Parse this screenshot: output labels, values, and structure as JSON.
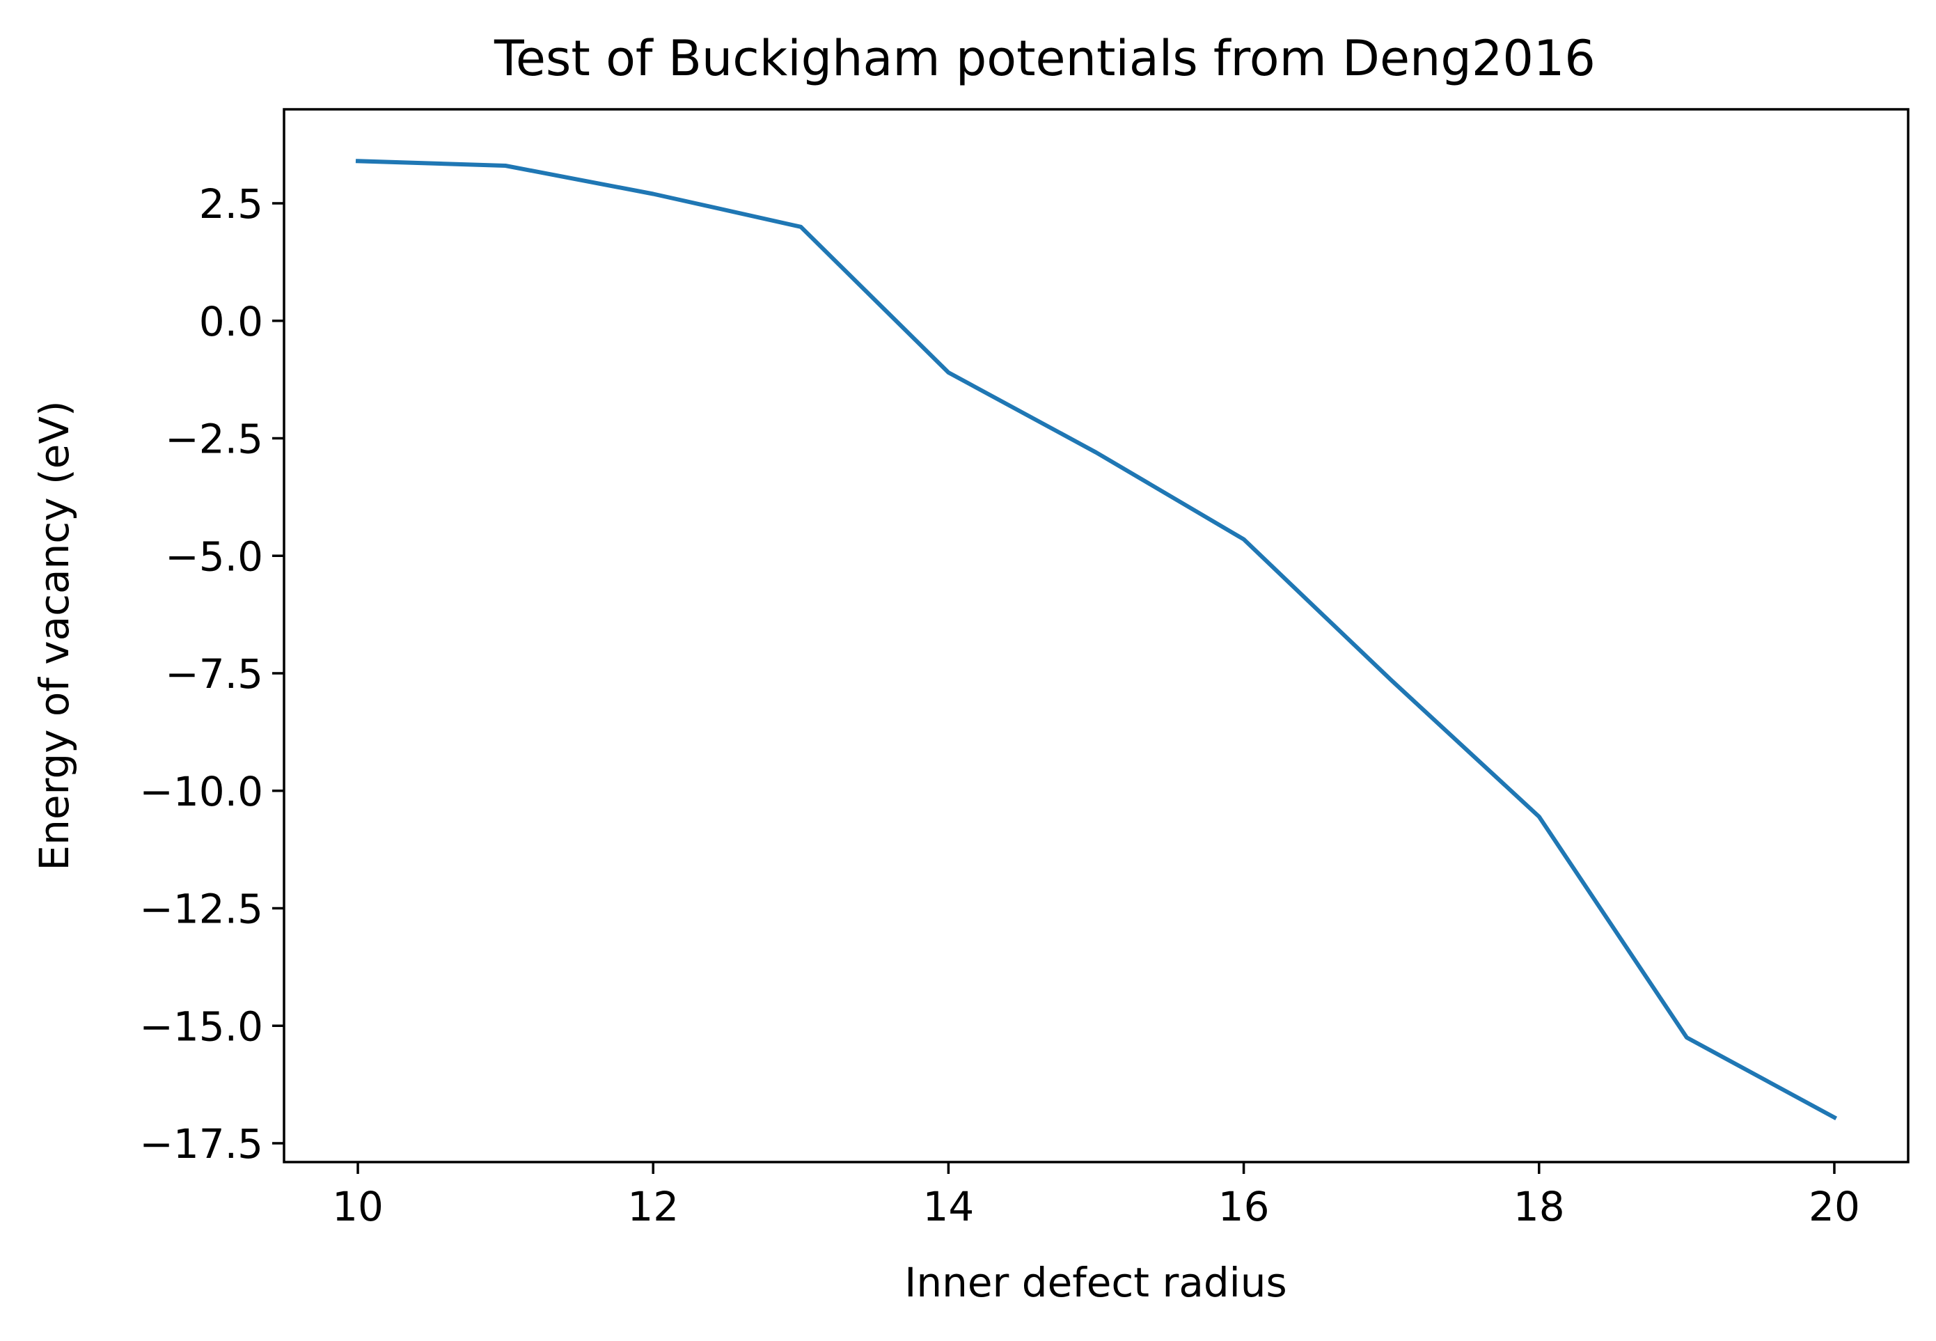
{
  "chart_data": {
    "type": "line",
    "title": "Test of Buckigham potentials from Deng2016",
    "xlabel": "Inner defect radius",
    "ylabel": "Energy of vacancy (eV)",
    "xlim": [
      9.5,
      20.5
    ],
    "ylim": [
      -17.9,
      4.5
    ],
    "x_ticks": [
      10,
      12,
      14,
      16,
      18,
      20
    ],
    "x_tick_labels": [
      "10",
      "12",
      "14",
      "16",
      "18",
      "20"
    ],
    "y_ticks": [
      2.5,
      0,
      -2.5,
      -5,
      -7.5,
      -10,
      -12.5,
      -15,
      -17.5
    ],
    "y_tick_labels": [
      "2.5",
      "0.0",
      "−2.5",
      "−5.0",
      "−7.5",
      "−10.0",
      "−12.5",
      "−15.0",
      "−17.5"
    ],
    "grid": false,
    "legend": "none",
    "series": [
      {
        "color": "#1f77b4",
        "x": [
          10,
          11,
          12,
          13,
          14,
          15,
          16,
          17,
          18,
          19,
          20
        ],
        "values": [
          3.4,
          3.3,
          2.7,
          2.0,
          -1.1,
          -2.8,
          -4.65,
          -7.65,
          -10.55,
          -15.25,
          -16.95
        ]
      }
    ]
  }
}
